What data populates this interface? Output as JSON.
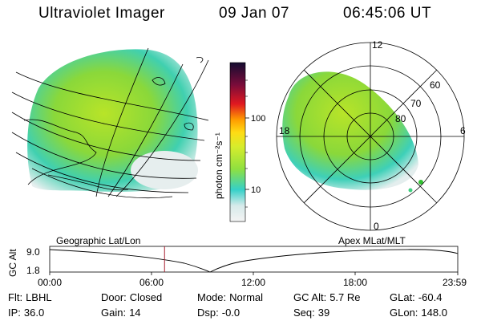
{
  "header": {
    "title": "Ultraviolet Imager",
    "date": "09 Jan 07",
    "time": "06:45:06 UT"
  },
  "colorbar": {
    "unit_label": "photon cm⁻²s⁻¹",
    "ticks": [
      "100",
      "10"
    ]
  },
  "polar_plot": {
    "mlt_labels": [
      "12",
      "18",
      "6",
      "0"
    ],
    "lat_labels": [
      "60",
      "70",
      "80"
    ]
  },
  "timeline": {
    "left_label": "Geographic Lat/Lon",
    "right_label": "Apex  MLat/MLT",
    "y_axis_label": "GC Alt",
    "y_ticks": [
      "9.0",
      "1.8"
    ],
    "x_ticks": [
      "00:00",
      "06:00",
      "12:00",
      "18:00",
      "23:59"
    ],
    "current_time_hours": 6.75,
    "marker_color": "#aa2233"
  },
  "status": {
    "flt": {
      "key": "Flt:",
      "value": "LBHL"
    },
    "ip": {
      "key": "IP:",
      "value": "36.0"
    },
    "door": {
      "key": "Door:",
      "value": "Closed"
    },
    "gain": {
      "key": "Gain:",
      "value": "14"
    },
    "mode": {
      "key": "Mode:",
      "value": "Normal"
    },
    "dsp": {
      "key": "Dsp:",
      "value": "-0.0"
    },
    "gcalt": {
      "key": "GC Alt:",
      "value": "5.7 Re"
    },
    "seq": {
      "key": "Seq:",
      "value": "39"
    },
    "glat": {
      "key": "GLat:",
      "value": "-60.4"
    },
    "glon": {
      "key": "GLon:",
      "value": "148.0"
    }
  }
}
